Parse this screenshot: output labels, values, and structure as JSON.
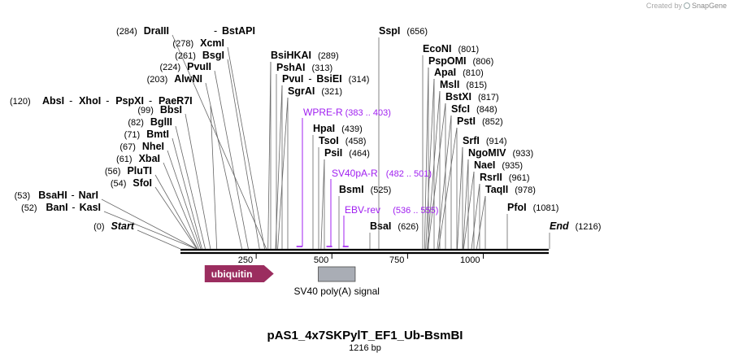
{
  "credit": {
    "prefix": "Created by",
    "brand": "SnapGene"
  },
  "plasmid": {
    "name": "pAS1_4x7SKPylT_EF1_Ub-BsmBI",
    "length_label": "1216 bp",
    "length_bp": 1216
  },
  "axis": {
    "ticks": [
      250,
      500,
      750,
      1000
    ],
    "tick_labels": [
      "250",
      "500",
      "750",
      "1000"
    ]
  },
  "colors": {
    "site": "#000000",
    "primer": "#a020f0",
    "ubiquitin": "#9b2d5f",
    "polya": "#a9adb5"
  },
  "left_label": {
    "pos": "(120)",
    "names": [
      "AbsI",
      "XhoI",
      "PspXI",
      "PaeR7I"
    ],
    "bp": 120
  },
  "sites": [
    {
      "name": "Start",
      "pos": "(0)",
      "bp": 0,
      "italic": true,
      "side": "left"
    },
    {
      "name": "KasI",
      "pos": "(52)",
      "bp": 52,
      "prefix": "BanI",
      "side": "left"
    },
    {
      "name": "NarI",
      "pos": "(53)",
      "bp": 53,
      "prefix": "BsaHI",
      "side": "left"
    },
    {
      "name": "SfoI",
      "pos": "(54)",
      "bp": 54,
      "side": "left"
    },
    {
      "name": "PluTI",
      "pos": "(56)",
      "bp": 56,
      "side": "left"
    },
    {
      "name": "XbaI",
      "pos": "(61)",
      "bp": 61,
      "side": "left"
    },
    {
      "name": "NheI",
      "pos": "(67)",
      "bp": 67,
      "side": "left"
    },
    {
      "name": "BmtI",
      "pos": "(71)",
      "bp": 71,
      "side": "left"
    },
    {
      "name": "BglII",
      "pos": "(82)",
      "bp": 82,
      "side": "left"
    },
    {
      "name": "BbsI",
      "pos": "(99)",
      "bp": 99,
      "side": "left"
    },
    {
      "name": "AlwNI",
      "pos": "(203)",
      "bp": 203,
      "side": "left"
    },
    {
      "name": "PvuII",
      "pos": "(224)",
      "bp": 224,
      "side": "left"
    },
    {
      "name": "BsgI",
      "pos": "(261)",
      "bp": 261,
      "side": "left"
    },
    {
      "name": "XcmI",
      "pos": "(278)",
      "bp": 278,
      "side": "left"
    },
    {
      "name": "DraIII",
      "pos": "(284)",
      "bp": 284,
      "suffix": "BstAPI",
      "side": "left"
    },
    {
      "name": "BsiHKAI",
      "pos": "(289)",
      "bp": 289,
      "side": "right"
    },
    {
      "name": "PshAI",
      "pos": "(313)",
      "bp": 313,
      "side": "right"
    },
    {
      "name": "PvuI",
      "pos": "(314)",
      "bp": 314,
      "suffix": "BsiEI",
      "side": "right"
    },
    {
      "name": "SgrAI",
      "pos": "(321)",
      "bp": 321,
      "side": "right"
    },
    {
      "name": "HpaI",
      "pos": "(439)",
      "bp": 439,
      "side": "right"
    },
    {
      "name": "TsoI",
      "pos": "(458)",
      "bp": 458,
      "side": "right"
    },
    {
      "name": "PsiI",
      "pos": "(464)",
      "bp": 464,
      "side": "right"
    },
    {
      "name": "BsmI",
      "pos": "(525)",
      "bp": 525,
      "side": "right"
    },
    {
      "name": "BsaI",
      "pos": "(626)",
      "bp": 626,
      "side": "right"
    },
    {
      "name": "SspI",
      "pos": "(656)",
      "bp": 656,
      "side": "right"
    },
    {
      "name": "EcoNI",
      "pos": "(801)",
      "bp": 801,
      "side": "right"
    },
    {
      "name": "PspOMI",
      "pos": "(806)",
      "bp": 806,
      "side": "right"
    },
    {
      "name": "ApaI",
      "pos": "(810)",
      "bp": 810,
      "side": "right"
    },
    {
      "name": "MslI",
      "pos": "(815)",
      "bp": 815,
      "side": "right"
    },
    {
      "name": "BstXI",
      "pos": "(817)",
      "bp": 817,
      "side": "right"
    },
    {
      "name": "SfcI",
      "pos": "(848)",
      "bp": 848,
      "side": "right"
    },
    {
      "name": "PstI",
      "pos": "(852)",
      "bp": 852,
      "side": "right"
    },
    {
      "name": "SrfI",
      "pos": "(914)",
      "bp": 914,
      "side": "right"
    },
    {
      "name": "NgoMIV",
      "pos": "(933)",
      "bp": 933,
      "side": "right"
    },
    {
      "name": "NaeI",
      "pos": "(935)",
      "bp": 935,
      "side": "right"
    },
    {
      "name": "RsrII",
      "pos": "(961)",
      "bp": 961,
      "side": "right"
    },
    {
      "name": "TaqII",
      "pos": "(978)",
      "bp": 978,
      "side": "right"
    },
    {
      "name": "PfoI",
      "pos": "(1081)",
      "bp": 1081,
      "side": "right"
    },
    {
      "name": "End",
      "pos": "(1216)",
      "bp": 1216,
      "italic": true,
      "side": "right"
    }
  ],
  "primers": [
    {
      "name": "WPRE-R",
      "range": "(383 .. 403)",
      "start": 383,
      "end": 403
    },
    {
      "name": "SV40pA-R",
      "range": "(482 .. 501)",
      "start": 482,
      "end": 501
    },
    {
      "name": "EBV-rev",
      "range": "(536 .. 555)",
      "start": 536,
      "end": 555
    }
  ],
  "features": [
    {
      "name": "ubiquitin",
      "start": 80,
      "end": 308,
      "kind": "arrow",
      "label_inside": true
    },
    {
      "name": "SV40 poly(A) signal",
      "start": 455,
      "end": 577,
      "kind": "box",
      "label_inside": false
    }
  ]
}
